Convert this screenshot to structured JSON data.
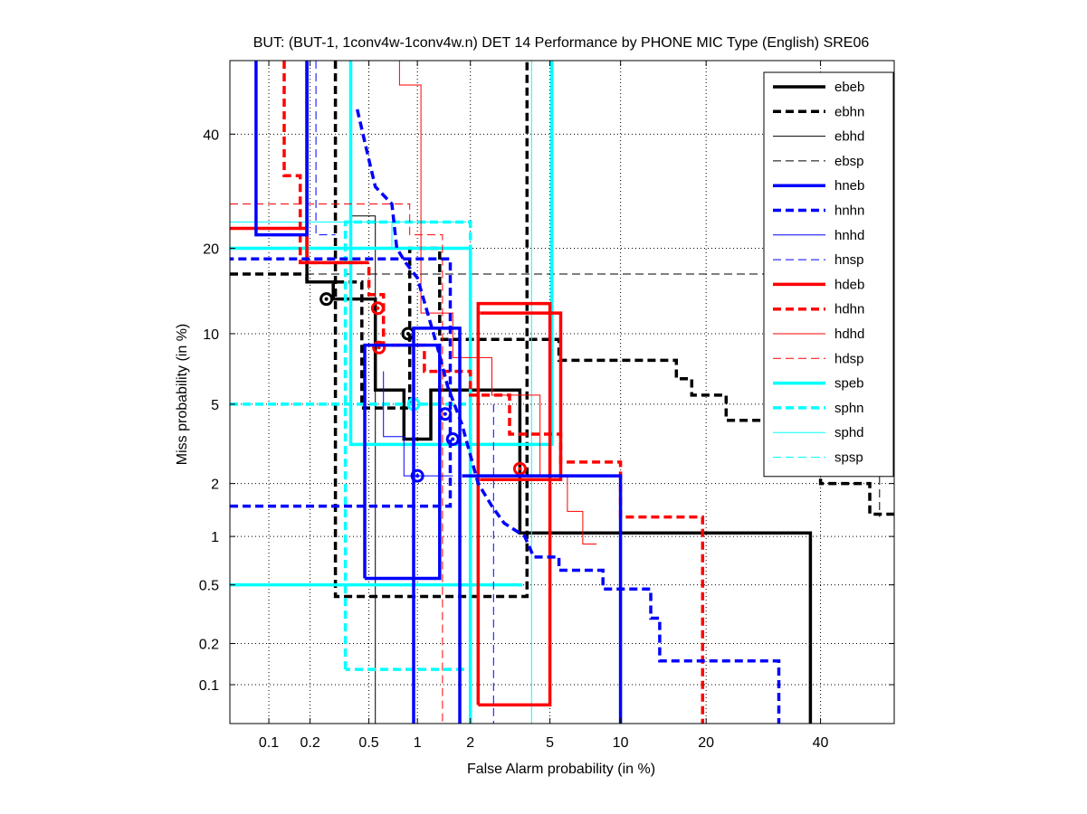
{
  "chart_data": {
    "type": "line",
    "subtype": "DET (probit-scaled axes)",
    "title": "BUT: (BUT-1, 1conv4w-1conv4w.n) DET 14 Performance by PHONE MIC Type (English) SRE06",
    "xlabel": "False Alarm probability (in %)",
    "ylabel": "Miss probability (in %)",
    "xlim": [
      0.05,
      55
    ],
    "ylim": [
      0.05,
      55
    ],
    "x_ticks": [
      0.1,
      0.2,
      0.5,
      1,
      2,
      5,
      10,
      20,
      40
    ],
    "x_tick_labels": [
      "0.1",
      "0.2",
      "0.5",
      "1",
      "2",
      "5",
      "10",
      "20",
      "40"
    ],
    "y_ticks": [
      0.1,
      0.2,
      0.5,
      1,
      2,
      5,
      10,
      20,
      40
    ],
    "y_tick_labels": [
      "0.1",
      "0.2",
      "0.5",
      "1",
      "2",
      "5",
      "10",
      "20",
      "40"
    ],
    "grid": true,
    "legend_position": "top-right",
    "colors": {
      "black": "#000000",
      "blue": "#0000ff",
      "red": "#ff0000",
      "cyan": "#00ffff",
      "grid": "#000000"
    },
    "series": [
      {
        "name": "ebeb",
        "color": "#000000",
        "style": "thick-solid",
        "points": [
          [
            0.19,
            55
          ],
          [
            0.19,
            15.5
          ],
          [
            0.29,
            15.5
          ],
          [
            0.29,
            13.5
          ],
          [
            0.55,
            13.5
          ],
          [
            0.55,
            5.8
          ],
          [
            0.83,
            5.8
          ],
          [
            0.83,
            3.4
          ],
          [
            1.2,
            3.4
          ],
          [
            1.2,
            5.8
          ],
          [
            3.6,
            5.8
          ],
          [
            3.6,
            1.05
          ],
          [
            38,
            1.05
          ],
          [
            38,
            0.05
          ]
        ],
        "marker": {
          "x": 0.26,
          "y": 13.5
        }
      },
      {
        "name": "ebhn",
        "color": "#000000",
        "style": "thick-dashed",
        "points": [
          [
            0.05,
            16.5
          ],
          [
            0.19,
            16.5
          ],
          [
            0.19,
            15.5
          ],
          [
            0.45,
            15.5
          ],
          [
            0.45,
            4.8
          ],
          [
            0.9,
            4.8
          ],
          [
            0.9,
            20
          ],
          [
            1.35,
            20
          ],
          [
            1.35,
            9.5
          ],
          [
            5.5,
            9.5
          ],
          [
            5.5,
            7.8
          ],
          [
            16,
            7.8
          ],
          [
            16,
            6.5
          ],
          [
            18,
            6.5
          ],
          [
            18,
            5.5
          ],
          [
            23,
            5.5
          ],
          [
            23,
            4.2
          ],
          [
            30,
            4.2
          ],
          [
            30,
            3
          ],
          [
            40,
            3
          ],
          [
            40,
            2
          ],
          [
            50,
            2
          ],
          [
            50,
            1.35
          ],
          [
            55,
            1.35
          ]
        ],
        "extra": [
          [
            0.3,
            55
          ],
          [
            0.3,
            0.42
          ],
          [
            3.9,
            0.42
          ],
          [
            3.9,
            55
          ]
        ],
        "marker": {
          "x": 0.88,
          "y": 10
        }
      },
      {
        "name": "ebhd",
        "color": "#000000",
        "style": "thin-solid",
        "points": [
          [
            0.38,
            55
          ],
          [
            0.38,
            25
          ],
          [
            0.55,
            25
          ],
          [
            0.55,
            0.05
          ]
        ]
      },
      {
        "name": "ebsp",
        "color": "#000000",
        "style": "thin-dashed",
        "points": [
          [
            0.05,
            16.5
          ],
          [
            55,
            16.5
          ]
        ],
        "extra": [
          [
            52,
            16.5
          ],
          [
            52,
            1.3
          ]
        ]
      },
      {
        "name": "hneb",
        "color": "#0000ff",
        "style": "thick-solid",
        "points": [
          [
            0.08,
            55
          ],
          [
            0.08,
            22
          ],
          [
            0.19,
            22
          ],
          [
            0.19,
            55
          ]
        ],
        "extra": [
          [
            0.47,
            0.55
          ],
          [
            0.47,
            9
          ],
          [
            1.35,
            9
          ],
          [
            1.35,
            0.55
          ],
          [
            0.47,
            0.55
          ]
        ],
        "extra2": [
          [
            0.95,
            0.05
          ],
          [
            0.95,
            10.5
          ],
          [
            1.75,
            10.5
          ],
          [
            1.75,
            0.05
          ]
        ],
        "extra3": [
          [
            1.8,
            2.2
          ],
          [
            10,
            2.2
          ],
          [
            10,
            0.05
          ]
        ],
        "marker": {
          "x": 1.45,
          "y": 4.5
        }
      },
      {
        "name": "hnhn",
        "color": "#0000ff",
        "style": "thick-dashed",
        "points": [
          [
            0.42,
            45
          ],
          [
            0.5,
            35
          ],
          [
            0.55,
            30
          ],
          [
            0.7,
            27
          ],
          [
            0.75,
            20
          ],
          [
            0.85,
            18
          ],
          [
            1.0,
            16
          ],
          [
            1.3,
            9
          ],
          [
            1.5,
            6
          ],
          [
            1.8,
            4
          ],
          [
            2.2,
            2
          ],
          [
            2.6,
            1.5
          ],
          [
            3.0,
            1.2
          ],
          [
            3.8,
            1
          ],
          [
            4.2,
            0.75
          ],
          [
            5.5,
            0.75
          ],
          [
            5.5,
            0.62
          ],
          [
            8.5,
            0.62
          ],
          [
            8.5,
            0.47
          ],
          [
            13,
            0.47
          ],
          [
            13,
            0.3
          ],
          [
            14,
            0.3
          ],
          [
            14,
            0.15
          ],
          [
            32,
            0.15
          ],
          [
            32,
            0.05
          ]
        ],
        "extra": [
          [
            0.05,
            1.5
          ],
          [
            1.55,
            1.5
          ],
          [
            1.55,
            18.5
          ],
          [
            0.05,
            18.5
          ]
        ],
        "marker": {
          "x": 1.6,
          "y": 3.4
        }
      },
      {
        "name": "hnhd",
        "color": "#0000ff",
        "style": "thin-solid",
        "points": [
          [
            0.62,
            7
          ],
          [
            0.62,
            3.5
          ],
          [
            0.83,
            3.5
          ],
          [
            0.83,
            2.2
          ],
          [
            1.6,
            2.2
          ]
        ],
        "marker": {
          "x": 1.0,
          "y": 2.2
        }
      },
      {
        "name": "hnsp",
        "color": "#0000ff",
        "style": "thin-dashed",
        "points": [
          [
            0.22,
            55
          ],
          [
            0.22,
            22
          ],
          [
            0.3,
            22
          ]
        ],
        "extra": [
          [
            2.65,
            5
          ],
          [
            2.65,
            0.05
          ]
        ]
      },
      {
        "name": "hdeb",
        "color": "#ff0000",
        "style": "thick-solid",
        "points": [
          [
            0.05,
            23
          ],
          [
            0.19,
            23
          ],
          [
            0.19,
            18
          ],
          [
            0.45,
            18
          ]
        ],
        "extra": [
          [
            2.2,
            0.07
          ],
          [
            2.2,
            13
          ],
          [
            5.0,
            13
          ],
          [
            5.0,
            0.07
          ],
          [
            2.2,
            0.07
          ]
        ],
        "extra2": [
          [
            2.25,
            2.1
          ],
          [
            5.6,
            2.1
          ],
          [
            5.6,
            12
          ],
          [
            2.25,
            12
          ]
        ],
        "marker": {
          "x": 0.57,
          "y": 12.5
        }
      },
      {
        "name": "hdhn",
        "color": "#ff0000",
        "style": "thick-dashed",
        "points": [
          [
            0.13,
            55
          ],
          [
            0.13,
            32
          ],
          [
            0.17,
            32
          ],
          [
            0.17,
            18
          ],
          [
            0.5,
            18
          ],
          [
            0.5,
            14
          ],
          [
            0.62,
            14
          ],
          [
            0.62,
            9
          ],
          [
            1.1,
            9
          ],
          [
            1.1,
            7
          ],
          [
            2.0,
            7
          ],
          [
            2.0,
            5.5
          ],
          [
            3.2,
            5.5
          ],
          [
            3.2,
            3.6
          ],
          [
            5.6,
            3.6
          ],
          [
            5.6,
            2.6
          ],
          [
            10,
            2.6
          ],
          [
            10,
            1.3
          ],
          [
            19.5,
            1.3
          ],
          [
            19.5,
            0.05
          ]
        ],
        "marker": {
          "x": 0.58,
          "y": 8.8
        }
      },
      {
        "name": "hdhd",
        "color": "#ff0000",
        "style": "thin-solid",
        "points": [
          [
            0.78,
            55
          ],
          [
            0.78,
            50
          ],
          [
            1.05,
            50
          ],
          [
            1.05,
            12
          ],
          [
            1.6,
            12
          ],
          [
            1.6,
            8
          ],
          [
            2.6,
            8
          ],
          [
            2.6,
            5.5
          ],
          [
            4.5,
            5.5
          ],
          [
            4.5,
            2.2
          ],
          [
            6,
            2.2
          ],
          [
            6,
            1.4
          ],
          [
            7,
            1.4
          ],
          [
            7,
            0.9
          ],
          [
            8,
            0.9
          ]
        ]
      },
      {
        "name": "hdsp",
        "color": "#ff0000",
        "style": "thin-dashed",
        "points": [
          [
            0.05,
            27
          ],
          [
            0.9,
            27
          ],
          [
            0.9,
            22
          ],
          [
            1.4,
            22
          ],
          [
            1.4,
            5
          ],
          [
            1.4,
            0.05
          ]
        ],
        "marker": {
          "x": 3.6,
          "y": 2.4
        }
      },
      {
        "name": "speb",
        "color": "#00ffff",
        "style": "thick-solid",
        "points": [
          [
            0.05,
            20
          ],
          [
            2.0,
            20
          ],
          [
            2.0,
            0.05
          ]
        ],
        "extra": [
          [
            0.38,
            55
          ],
          [
            0.38,
            3.2
          ],
          [
            5.1,
            3.2
          ],
          [
            5.1,
            55
          ]
        ],
        "extra2": [
          [
            0.05,
            0.5
          ],
          [
            3.7,
            0.5
          ]
        ],
        "marker": {
          "x": 0.95,
          "y": 5
        }
      },
      {
        "name": "sphn",
        "color": "#00ffff",
        "style": "thick-dashed",
        "points": [
          [
            0.05,
            5
          ],
          [
            1.9,
            5
          ]
        ],
        "extra": [
          [
            0.35,
            0.13
          ],
          [
            0.35,
            24
          ],
          [
            2.0,
            24
          ],
          [
            2.0,
            0.13
          ],
          [
            0.35,
            0.13
          ]
        ]
      },
      {
        "name": "sphd",
        "color": "#00ffff",
        "style": "thin-solid",
        "points": [
          [
            0.05,
            24
          ],
          [
            0.7,
            24
          ],
          [
            0.7,
            20
          ]
        ],
        "extra": [
          [
            4.1,
            55
          ],
          [
            4.1,
            0.05
          ]
        ]
      },
      {
        "name": "spsp",
        "color": "#00ffff",
        "style": "thin-dashed",
        "points": [
          [
            0.35,
            24
          ],
          [
            1.9,
            24
          ]
        ]
      }
    ]
  }
}
